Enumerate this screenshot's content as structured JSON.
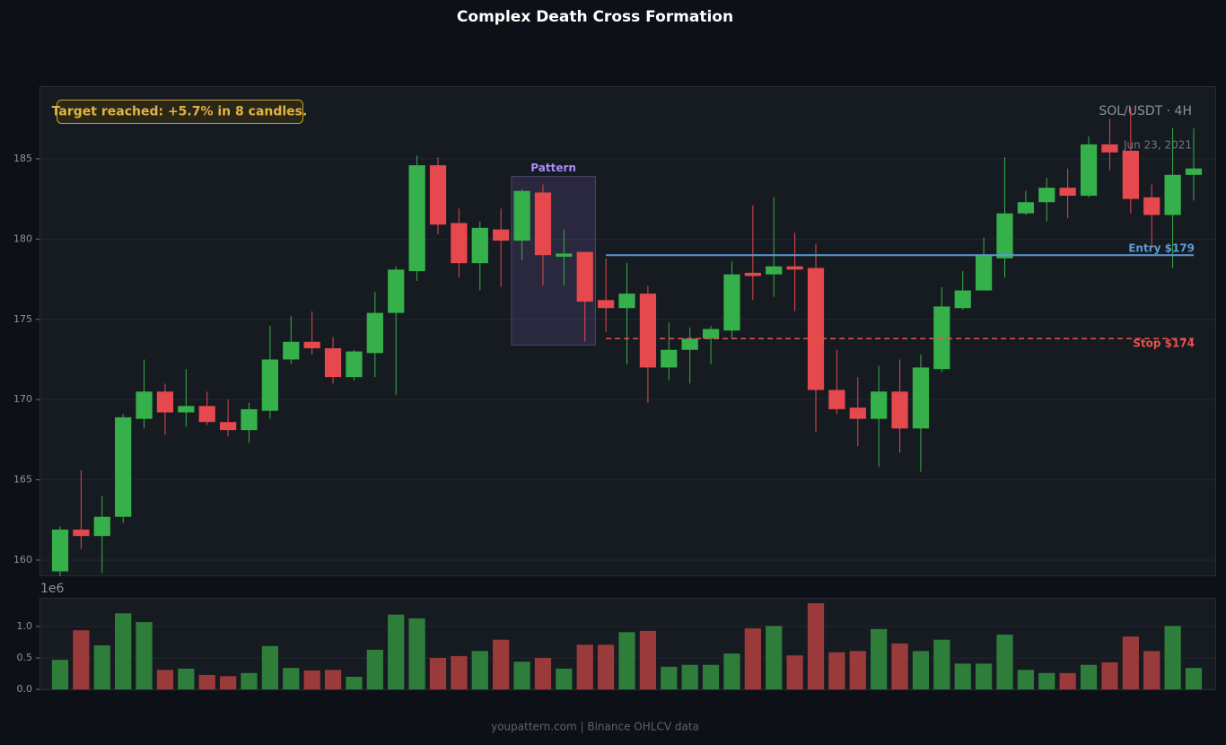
{
  "chart_data": {
    "type": "candlestick",
    "title": "Complex Death Cross Formation",
    "symbol_label": "SOL/USDT · 4H",
    "date_label": "Jun 23, 2021",
    "annotation": "Target reached: +5.7% in 8 candles.",
    "footer": "youpattern.com | Binance OHLCV data",
    "up_color": "#35b04a",
    "down_color": "#e5484d",
    "volume_up_color": "#2f7d3a",
    "volume_down_color": "#9b3a3a",
    "grid": true,
    "candles": {
      "open": [
        159.3,
        161.9,
        161.5,
        162.7,
        168.8,
        170.5,
        169.2,
        169.6,
        168.6,
        168.1,
        169.3,
        172.5,
        173.6,
        173.2,
        171.4,
        172.9,
        175.4,
        178.0,
        184.6,
        181.0,
        178.5,
        180.6,
        179.9,
        182.9,
        178.9,
        179.2,
        176.2,
        175.7,
        176.6,
        172.0,
        173.1,
        173.8,
        174.3,
        177.9,
        177.8,
        178.3,
        178.2,
        170.6,
        169.5,
        168.8,
        170.5,
        168.2,
        171.9,
        175.7,
        176.8,
        178.8,
        181.6,
        182.3,
        183.2,
        182.7,
        185.9,
        185.5,
        182.6,
        181.5,
        184.0
      ],
      "high": [
        162.1,
        165.6,
        164.0,
        169.1,
        172.5,
        171.0,
        171.9,
        170.5,
        170.0,
        169.8,
        174.6,
        175.2,
        175.5,
        173.9,
        173.1,
        176.7,
        178.3,
        185.2,
        185.1,
        181.9,
        181.1,
        181.9,
        183.1,
        183.4,
        180.6,
        179.2,
        178.8,
        178.5,
        177.1,
        174.8,
        174.5,
        174.6,
        178.6,
        182.1,
        182.6,
        180.4,
        179.7,
        173.1,
        171.4,
        172.1,
        172.5,
        172.8,
        177.0,
        178.0,
        180.1,
        185.1,
        183.0,
        183.8,
        184.4,
        186.4,
        187.5,
        188.2,
        183.4,
        186.9,
        186.9
      ],
      "low": [
        159.0,
        160.7,
        159.2,
        162.3,
        168.2,
        167.8,
        168.3,
        168.4,
        167.7,
        167.3,
        168.8,
        172.2,
        172.8,
        171.0,
        171.2,
        171.4,
        170.3,
        177.4,
        180.3,
        177.6,
        176.8,
        177.0,
        178.7,
        177.1,
        177.1,
        173.6,
        174.2,
        172.2,
        169.8,
        171.2,
        171.0,
        172.2,
        173.8,
        176.2,
        176.4,
        175.5,
        168.0,
        169.1,
        167.1,
        165.8,
        166.7,
        165.5,
        171.7,
        175.6,
        176.8,
        177.6,
        181.5,
        181.1,
        181.3,
        182.6,
        184.3,
        181.6,
        179.5,
        178.2,
        182.4
      ],
      "close": [
        161.9,
        161.5,
        162.7,
        168.9,
        170.5,
        169.2,
        169.6,
        168.6,
        168.1,
        169.4,
        172.5,
        173.6,
        173.2,
        171.4,
        173.0,
        175.4,
        178.1,
        184.6,
        180.9,
        178.5,
        180.7,
        179.9,
        183.0,
        179.0,
        179.1,
        176.1,
        175.7,
        176.6,
        172.0,
        173.1,
        173.8,
        174.4,
        177.8,
        177.7,
        178.3,
        178.1,
        170.6,
        169.4,
        168.8,
        170.5,
        168.2,
        172.0,
        175.8,
        176.8,
        179.0,
        181.6,
        182.3,
        183.2,
        182.7,
        185.9,
        185.4,
        182.5,
        181.5,
        184.0,
        184.4
      ]
    },
    "volume": [
      0.47,
      0.94,
      0.7,
      1.21,
      1.07,
      0.31,
      0.33,
      0.23,
      0.21,
      0.26,
      0.69,
      0.34,
      0.3,
      0.31,
      0.2,
      0.63,
      1.19,
      1.13,
      0.5,
      0.53,
      0.61,
      0.79,
      0.44,
      0.5,
      0.33,
      0.71,
      0.71,
      0.91,
      0.93,
      0.36,
      0.39,
      0.39,
      0.57,
      0.97,
      1.01,
      0.54,
      1.37,
      0.59,
      0.61,
      0.96,
      0.73,
      0.61,
      0.79,
      0.41,
      0.41,
      0.87,
      0.31,
      0.26,
      0.26,
      0.39,
      0.43,
      0.84,
      0.61,
      1.01,
      0.34
    ],
    "ylim": [
      159.05,
      189.47
    ],
    "yticks": [
      160,
      165,
      170,
      175,
      180,
      185
    ],
    "volume_ylim": [
      0,
      1.443
    ],
    "volume_yticks": [
      {
        "value": 0,
        "label": "0.0"
      },
      {
        "value": 0.5,
        "label": "0.5"
      },
      {
        "value": 1,
        "label": "1.0"
      }
    ],
    "volume_scale_label": "1e6",
    "levels": [
      {
        "value": 179.0,
        "label": "Entry $179",
        "color": "#5b9bd5",
        "dashed": false,
        "from_index": 26
      },
      {
        "value": 173.8,
        "label": "Stop $174",
        "color": "#e5534b",
        "dashed": true,
        "from_index": 26
      }
    ],
    "pattern": {
      "label": "Pattern",
      "from_index": 22,
      "to_index": 25,
      "low": 173.4,
      "high": 183.9
    }
  }
}
